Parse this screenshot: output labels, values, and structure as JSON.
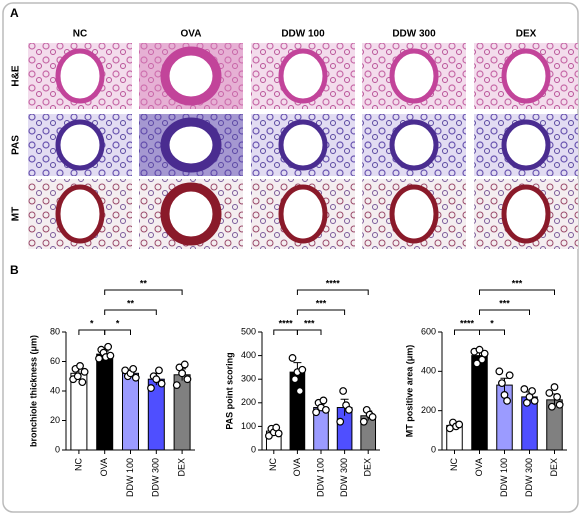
{
  "panel_a": {
    "label": "A",
    "columns": [
      "NC",
      "OVA",
      "DDW 100",
      "DDW 300",
      "DEX"
    ],
    "rows": [
      "H&E",
      "PAS",
      "MT"
    ]
  },
  "panel_b": {
    "label": "B"
  },
  "chart_data": [
    {
      "type": "bar",
      "y_label": "bronchiole thickness (μm)",
      "categories": [
        "NC",
        "OVA",
        "DDW 100",
        "DDW 300",
        "DEX"
      ],
      "values": [
        52,
        65,
        52,
        48,
        51
      ],
      "errors": [
        3,
        2,
        2,
        4,
        4
      ],
      "points": [
        [
          48,
          55,
          50,
          57,
          46,
          53
        ],
        [
          62,
          68,
          66,
          63,
          70,
          64
        ],
        [
          54,
          50,
          52,
          55,
          49
        ],
        [
          42,
          50,
          48,
          54,
          45
        ],
        [
          44,
          56,
          52,
          58,
          48
        ]
      ],
      "colors": [
        "#ffffff",
        "#000000",
        "#9b9bff",
        "#4f4fff",
        "#808080"
      ],
      "ylim": [
        0,
        80
      ],
      "yticks": [
        0,
        20,
        40,
        60,
        80
      ],
      "brackets": [
        {
          "between": [
            "NC",
            "OVA"
          ],
          "label": "*"
        },
        {
          "between": [
            "OVA",
            "DDW 100"
          ],
          "label": "*"
        },
        {
          "between": [
            "OVA",
            "DDW 300"
          ],
          "label": "**"
        },
        {
          "between": [
            "OVA",
            "DEX"
          ],
          "label": "**"
        }
      ]
    },
    {
      "type": "bar",
      "y_label": "PAS point scoring",
      "categories": [
        "NC",
        "OVA",
        "DDW 100",
        "DDW 300",
        "DEX"
      ],
      "values": [
        80,
        330,
        180,
        180,
        145
      ],
      "errors": [
        10,
        40,
        15,
        35,
        20
      ],
      "points": [
        [
          60,
          90,
          75,
          95,
          70
        ],
        [
          390,
          300,
          330,
          250,
          340
        ],
        [
          160,
          200,
          180,
          210,
          170
        ],
        [
          120,
          250,
          190,
          170
        ],
        [
          120,
          170,
          150,
          140
        ]
      ],
      "colors": [
        "#ffffff",
        "#000000",
        "#9b9bff",
        "#4f4fff",
        "#808080"
      ],
      "ylim": [
        0,
        500
      ],
      "yticks": [
        0,
        100,
        200,
        300,
        400,
        500
      ],
      "brackets": [
        {
          "between": [
            "NC",
            "OVA"
          ],
          "label": "****"
        },
        {
          "between": [
            "OVA",
            "DDW 100"
          ],
          "label": "***"
        },
        {
          "between": [
            "OVA",
            "DDW 300"
          ],
          "label": "***"
        },
        {
          "between": [
            "OVA",
            "DEX"
          ],
          "label": "****"
        }
      ]
    },
    {
      "type": "bar",
      "y_label": "MT positive area (μm)",
      "categories": [
        "NC",
        "OVA",
        "DDW 100",
        "DDW 300",
        "DEX"
      ],
      "values": [
        125,
        480,
        330,
        270,
        255
      ],
      "errors": [
        15,
        25,
        35,
        25,
        30
      ],
      "points": [
        [
          110,
          140,
          120,
          130
        ],
        [
          500,
          440,
          510,
          460,
          490
        ],
        [
          400,
          340,
          280,
          250,
          380
        ],
        [
          310,
          240,
          270,
          300,
          250
        ],
        [
          290,
          220,
          320,
          270,
          230
        ]
      ],
      "colors": [
        "#ffffff",
        "#000000",
        "#9b9bff",
        "#4f4fff",
        "#808080"
      ],
      "ylim": [
        0,
        600
      ],
      "yticks": [
        0,
        200,
        400,
        600
      ],
      "brackets": [
        {
          "between": [
            "NC",
            "OVA"
          ],
          "label": "****"
        },
        {
          "between": [
            "OVA",
            "DDW 100"
          ],
          "label": "*"
        },
        {
          "between": [
            "OVA",
            "DDW 300"
          ],
          "label": "***"
        },
        {
          "between": [
            "OVA",
            "DEX"
          ],
          "label": "***"
        }
      ]
    }
  ]
}
